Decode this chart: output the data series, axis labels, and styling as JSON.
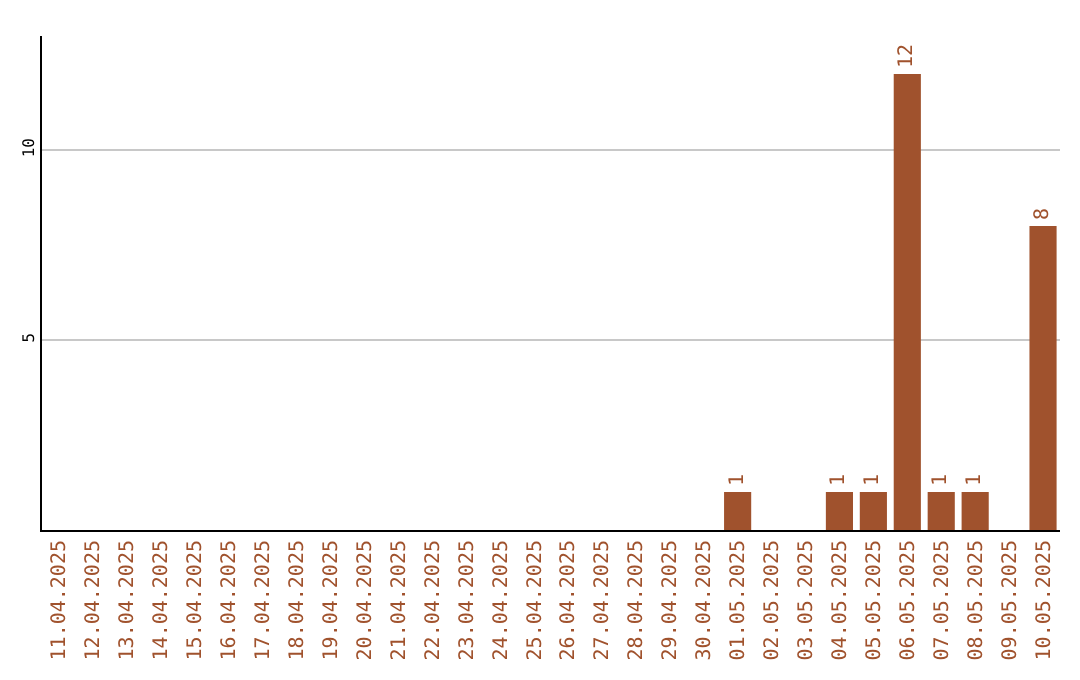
{
  "chart_data": {
    "type": "bar",
    "categories": [
      "11.04.2025",
      "12.04.2025",
      "13.04.2025",
      "14.04.2025",
      "15.04.2025",
      "16.04.2025",
      "17.04.2025",
      "18.04.2025",
      "19.04.2025",
      "20.04.2025",
      "21.04.2025",
      "22.04.2025",
      "23.04.2025",
      "24.04.2025",
      "25.04.2025",
      "26.04.2025",
      "27.04.2025",
      "28.04.2025",
      "29.04.2025",
      "30.04.2025",
      "01.05.2025",
      "02.05.2025",
      "03.05.2025",
      "04.05.2025",
      "05.05.2025",
      "06.05.2025",
      "07.05.2025",
      "08.05.2025",
      "09.05.2025",
      "10.05.2025"
    ],
    "values": [
      null,
      null,
      null,
      null,
      null,
      null,
      null,
      null,
      null,
      null,
      null,
      null,
      null,
      null,
      null,
      null,
      null,
      null,
      null,
      null,
      1,
      null,
      null,
      1,
      1,
      12,
      1,
      1,
      null,
      8
    ],
    "color": "#a0522d",
    "ylim": [
      0,
      13
    ],
    "yticks": [
      5,
      10
    ],
    "grid": "y",
    "data_labels": true
  }
}
